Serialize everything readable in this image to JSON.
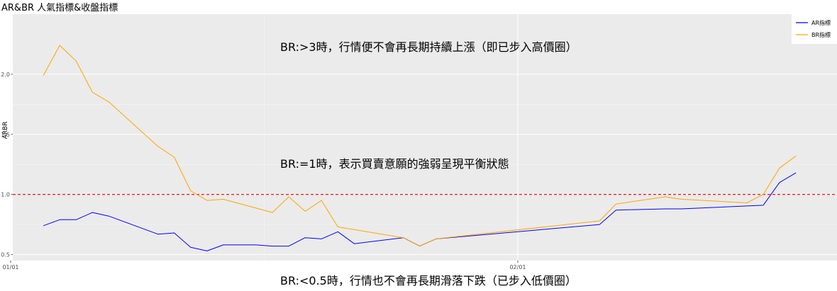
{
  "chart_data": {
    "type": "line",
    "title": "AR&BR 人氣指標&收盤指標",
    "ylabel": "ARBR",
    "xlabel": "",
    "ylim": [
      0.45,
      2.5
    ],
    "yticks": [
      0.5,
      1.0,
      1.5,
      2.0
    ],
    "ytick_labels": [
      "0.5",
      "1.0",
      "1.5",
      "2.0"
    ],
    "xlim": [
      1,
      49
    ],
    "xticks": [
      1,
      32
    ],
    "xtick_labels": [
      "01/01",
      "02/01"
    ],
    "grid": true,
    "legend_position": "top-right",
    "reference_line": {
      "y": 1.0,
      "color": "#e41a1c",
      "style": "dashed"
    },
    "series": [
      {
        "name": "AR指標",
        "color": "#0000ff",
        "points": [
          [
            3,
            0.74
          ],
          [
            4,
            0.79
          ],
          [
            5,
            0.79
          ],
          [
            6,
            0.85
          ],
          [
            7,
            0.82
          ],
          [
            10,
            0.67
          ],
          [
            11,
            0.68
          ],
          [
            12,
            0.56
          ],
          [
            13,
            0.53
          ],
          [
            14,
            0.58
          ],
          [
            16,
            0.58
          ],
          [
            17,
            0.57
          ],
          [
            18,
            0.57
          ],
          [
            19,
            0.64
          ],
          [
            20,
            0.63
          ],
          [
            21,
            0.69
          ],
          [
            22,
            0.59
          ],
          [
            25,
            0.64
          ],
          [
            26,
            0.57
          ],
          [
            27,
            0.63
          ],
          [
            37,
            0.75
          ],
          [
            38,
            0.87
          ],
          [
            41,
            0.88
          ],
          [
            42,
            0.88
          ],
          [
            47,
            0.91
          ],
          [
            48,
            1.1
          ],
          [
            49,
            1.18
          ]
        ]
      },
      {
        "name": "BR指標",
        "color": "#ffa500",
        "points": [
          [
            3,
            1.99
          ],
          [
            4,
            2.24
          ],
          [
            5,
            2.11
          ],
          [
            6,
            1.85
          ],
          [
            7,
            1.77
          ],
          [
            10,
            1.4
          ],
          [
            11,
            1.31
          ],
          [
            12,
            1.03
          ],
          [
            13,
            0.95
          ],
          [
            14,
            0.96
          ],
          [
            17,
            0.85
          ],
          [
            18,
            0.98
          ],
          [
            19,
            0.86
          ],
          [
            20,
            0.95
          ],
          [
            21,
            0.73
          ],
          [
            25,
            0.64
          ],
          [
            26,
            0.57
          ],
          [
            27,
            0.63
          ],
          [
            37,
            0.78
          ],
          [
            38,
            0.92
          ],
          [
            41,
            0.98
          ],
          [
            42,
            0.96
          ],
          [
            46,
            0.93
          ],
          [
            47,
            1.0
          ],
          [
            48,
            1.22
          ],
          [
            49,
            1.32
          ]
        ]
      }
    ],
    "annotations": [
      {
        "text": "BR:>3時，行情便不會再長期持續上漲（即已步入高價圈）"
      },
      {
        "text": "BR:=1時，表示買賣意願的強弱呈現平衡狀態"
      },
      {
        "text": "BR:<0.5時，行情也不會再長期滑落下跌（已步入低價圈）"
      }
    ]
  }
}
